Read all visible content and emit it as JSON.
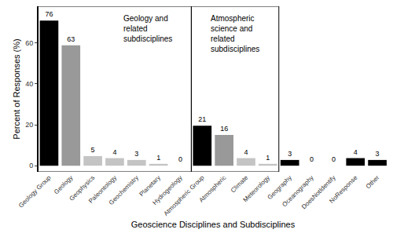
{
  "chart_data": {
    "type": "bar",
    "x_label": "Geoscience Disciplines and Subdisciplines",
    "y_label": "Percent of Responses (%)",
    "categories": [
      "Geology Group",
      "Geology",
      "Geophysics",
      "Paleontology",
      "Geochemistry",
      "Planetary",
      "Hydrogeology",
      "Atmospheric Group",
      "Atmospheric",
      "Climate",
      "Meteorology",
      "Geography",
      "Oceanography",
      "DoesNotIdentify",
      "NoResponse",
      "Other"
    ],
    "values": [
      71,
      58.9,
      4.7,
      3.7,
      2.8,
      0.9,
      0,
      19.6,
      15,
      3.7,
      0.9,
      2.8,
      0,
      0,
      3.7,
      2.8
    ],
    "counts": [
      76,
      63,
      5,
      4,
      3,
      1,
      0,
      21,
      16,
      4,
      1,
      3,
      0,
      0,
      4,
      3
    ],
    "colors": [
      "#000000",
      "#999999",
      "#c4c4c4",
      "#c4c4c4",
      "#c4c4c4",
      "#c4c4c4",
      "#c4c4c4",
      "#000000",
      "#999999",
      "#c4c4c4",
      "#c4c4c4",
      "#000000",
      "#000000",
      "#000000",
      "#000000",
      "#000000"
    ],
    "ylim": [
      -3,
      78
    ],
    "yticks": [
      0,
      20,
      40,
      60
    ],
    "grid": false,
    "annotations": [
      {
        "text": "Geology and\nrelated\nsubdisciplines",
        "from": "Geology Group",
        "to": "Hydrogeology"
      },
      {
        "text": "Atmospheric\nscience and\nrelated\nsubdisciplines",
        "from": "Atmospheric Group",
        "to": "Meteorology"
      }
    ]
  }
}
